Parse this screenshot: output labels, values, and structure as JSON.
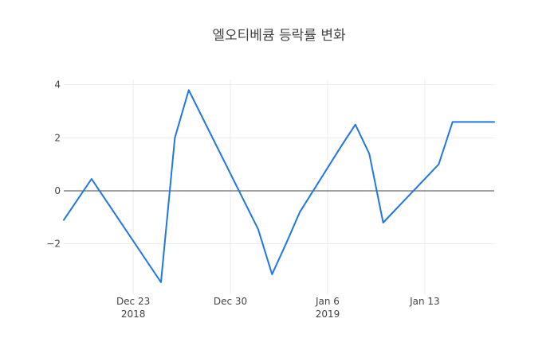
{
  "chart_data": {
    "type": "line",
    "title": "엘오티베큠 등락률 변화",
    "xlabel": "",
    "ylabel": "",
    "x_axis_type": "date",
    "xlim": [
      "2018-12-18",
      "2019-01-18"
    ],
    "ylim": [
      -3.9,
      4.2
    ],
    "grid": true,
    "legend": "none",
    "x_ticks": [
      {
        "date": "2018-12-23",
        "label": "Dec 23",
        "sublabel": "2018"
      },
      {
        "date": "2018-12-30",
        "label": "Dec 30",
        "sublabel": ""
      },
      {
        "date": "2019-01-06",
        "label": "Jan 6",
        "sublabel": "2019"
      },
      {
        "date": "2019-01-13",
        "label": "Jan 13",
        "sublabel": ""
      }
    ],
    "y_ticks": [
      {
        "value": 4,
        "label": "4"
      },
      {
        "value": 2,
        "label": "2"
      },
      {
        "value": 0,
        "label": "0"
      },
      {
        "value": -2,
        "label": "−2"
      }
    ],
    "series": [
      {
        "name": "",
        "color": "#1f77e4",
        "x": [
          "2018-12-18",
          "2018-12-20",
          "2018-12-25",
          "2018-12-26",
          "2018-12-27",
          "2019-01-01",
          "2019-01-02",
          "2019-01-03",
          "2019-01-04",
          "2019-01-07",
          "2019-01-08",
          "2019-01-09",
          "2019-01-10",
          "2019-01-14",
          "2019-01-15",
          "2019-01-16",
          "2019-01-18"
        ],
        "values": [
          -1.1,
          0.45,
          -3.45,
          2.0,
          3.8,
          -1.45,
          -3.15,
          -2.0,
          -0.8,
          1.7,
          2.5,
          1.4,
          -1.2,
          1.0,
          2.6,
          2.6,
          2.6
        ]
      }
    ]
  }
}
